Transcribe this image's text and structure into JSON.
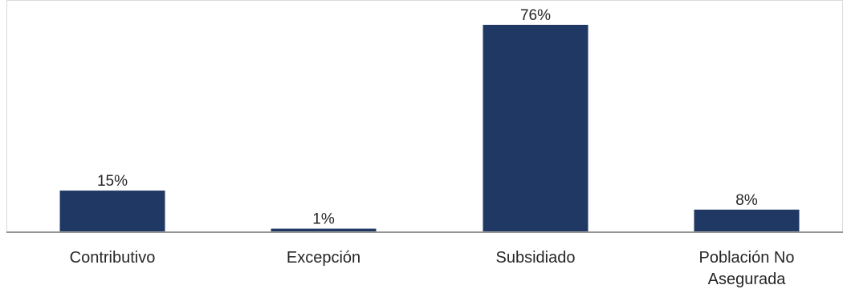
{
  "chart_data": {
    "type": "bar",
    "categories": [
      "Contributivo",
      "Excepción",
      "Subsidiado",
      "Población No Asegurada"
    ],
    "category_lines": [
      [
        "Contributivo"
      ],
      [
        "Excepción"
      ],
      [
        "Subsidiado"
      ],
      [
        "Población No",
        "Asegurada"
      ]
    ],
    "values": [
      15,
      1,
      76,
      8
    ],
    "value_labels": [
      "15%",
      "1%",
      "76%",
      "8%"
    ],
    "ylim": [
      0,
      76
    ],
    "grid": false,
    "bar_color": "#1f3864"
  }
}
